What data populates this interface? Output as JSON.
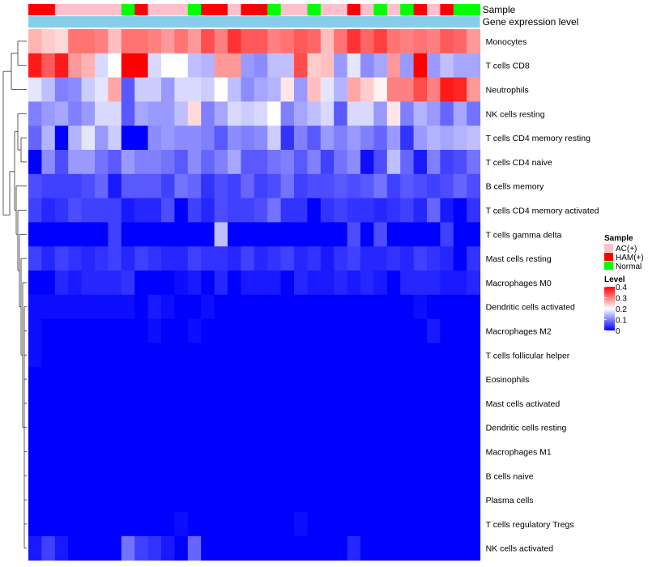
{
  "chart_data": {
    "type": "heatmap",
    "title": "",
    "annotation_rows": [
      "Sample",
      "Gene expression level"
    ],
    "rows": [
      "Monocytes",
      "T cells CD8",
      "Neutrophils",
      "NK cells resting",
      "T cells CD4 memory resting",
      "T cells CD4 naive",
      "B cells memory",
      "T cells CD4 memory activated",
      "T cells gamma delta",
      "Mast cells resting",
      "Macrophages M0",
      "Dendritic cells activated",
      "Macrophages M2",
      "T cells follicular helper",
      "Eosinophils",
      "Mast cells activated",
      "Dendritic cells resting",
      "Macrophages M1",
      "B cells naive",
      "Plasma cells",
      "T cells regulatory  Tregs",
      "NK cells activated"
    ],
    "column_groups": [
      "HAM(+)",
      "HAM(+)",
      "AC(+)",
      "AC(+)",
      "AC(+)",
      "AC(+)",
      "AC(+)",
      "Normal",
      "HAM(+)",
      "AC(+)",
      "AC(+)",
      "AC(+)",
      "Normal",
      "HAM(+)",
      "HAM(+)",
      "AC(+)",
      "HAM(+)",
      "HAM(+)",
      "Normal",
      "AC(+)",
      "AC(+)",
      "Normal",
      "AC(+)",
      "AC(+)",
      "HAM(+)",
      "AC(+)",
      "Normal",
      "AC(+)",
      "Normal",
      "HAM(+)",
      "AC(+)",
      "HAM(+)",
      "Normal",
      "Normal"
    ],
    "values": [
      [
        0.26,
        0.24,
        0.23,
        0.31,
        0.31,
        0.3,
        0.25,
        0.31,
        0.31,
        0.3,
        0.28,
        0.31,
        0.28,
        0.34,
        0.3,
        0.36,
        0.33,
        0.33,
        0.3,
        0.31,
        0.33,
        0.32,
        0.25,
        0.31,
        0.36,
        0.32,
        0.35,
        0.31,
        0.3,
        0.31,
        0.3,
        0.33,
        0.32,
        0.28
      ],
      [
        0.38,
        0.33,
        0.38,
        0.28,
        0.26,
        0.17,
        0.2,
        0.4,
        0.4,
        0.17,
        0.2,
        0.2,
        0.15,
        0.14,
        0.28,
        0.28,
        0.12,
        0.11,
        0.15,
        0.15,
        0.34,
        0.24,
        0.25,
        0.12,
        0.18,
        0.11,
        0.13,
        0.28,
        0.12,
        0.4,
        0.12,
        0.15,
        0.13,
        0.13
      ],
      [
        0.18,
        0.15,
        0.1,
        0.11,
        0.16,
        0.18,
        0.27,
        0.07,
        0.16,
        0.16,
        0.12,
        0.17,
        0.17,
        0.16,
        0.2,
        0.15,
        0.11,
        0.13,
        0.14,
        0.22,
        0.12,
        0.25,
        0.18,
        0.14,
        0.27,
        0.24,
        0.21,
        0.3,
        0.3,
        0.34,
        0.3,
        0.38,
        0.37,
        0.28
      ],
      [
        0.1,
        0.12,
        0.13,
        0.1,
        0.12,
        0.17,
        0.17,
        0.07,
        0.13,
        0.12,
        0.12,
        0.15,
        0.23,
        0.1,
        0.13,
        0.17,
        0.16,
        0.17,
        0.2,
        0.1,
        0.13,
        0.15,
        0.17,
        0.07,
        0.17,
        0.17,
        0.12,
        0.22,
        0.1,
        0.14,
        0.12,
        0.08,
        0.13,
        0.09
      ],
      [
        0.08,
        0.14,
        0.0,
        0.14,
        0.18,
        0.12,
        0.16,
        0.0,
        0.0,
        0.11,
        0.12,
        0.11,
        0.11,
        0.1,
        0.07,
        0.11,
        0.1,
        0.11,
        0.16,
        0.04,
        0.1,
        0.07,
        0.12,
        0.1,
        0.12,
        0.1,
        0.08,
        0.12,
        0.04,
        0.12,
        0.14,
        0.13,
        0.14,
        0.15
      ],
      [
        0.0,
        0.11,
        0.06,
        0.12,
        0.12,
        0.09,
        0.07,
        0.12,
        0.1,
        0.1,
        0.09,
        0.07,
        0.11,
        0.08,
        0.1,
        0.13,
        0.07,
        0.07,
        0.09,
        0.1,
        0.07,
        0.1,
        0.05,
        0.09,
        0.11,
        0.01,
        0.06,
        0.15,
        0.08,
        0.02,
        0.1,
        0.05,
        0.06,
        0.09
      ],
      [
        0.06,
        0.05,
        0.05,
        0.05,
        0.06,
        0.08,
        0.02,
        0.07,
        0.07,
        0.07,
        0.05,
        0.09,
        0.08,
        0.04,
        0.06,
        0.05,
        0.08,
        0.05,
        0.06,
        0.09,
        0.05,
        0.06,
        0.06,
        0.07,
        0.06,
        0.07,
        0.09,
        0.05,
        0.07,
        0.06,
        0.05,
        0.06,
        0.08,
        0.06
      ],
      [
        0.05,
        0.03,
        0.04,
        0.06,
        0.05,
        0.05,
        0.05,
        0.02,
        0.03,
        0.03,
        0.06,
        0.0,
        0.05,
        0.03,
        0.06,
        0.05,
        0.05,
        0.06,
        0.09,
        0.04,
        0.04,
        0.0,
        0.04,
        0.05,
        0.04,
        0.04,
        0.03,
        0.04,
        0.05,
        0.03,
        0.08,
        0.02,
        0.0,
        0.04
      ],
      [
        0.0,
        0.0,
        0.0,
        0.0,
        0.0,
        0.0,
        0.05,
        0.0,
        0.0,
        0.0,
        0.0,
        0.0,
        0.0,
        0.0,
        0.15,
        0.0,
        0.0,
        0.0,
        0.0,
        0.0,
        0.0,
        0.0,
        0.0,
        0.0,
        0.06,
        0.0,
        0.06,
        0.0,
        0.0,
        0.0,
        0.0,
        0.05,
        0.0,
        0.0
      ],
      [
        0.05,
        0.03,
        0.05,
        0.04,
        0.03,
        0.04,
        0.05,
        0.03,
        0.05,
        0.04,
        0.03,
        0.03,
        0.05,
        0.04,
        0.04,
        0.03,
        0.05,
        0.03,
        0.04,
        0.05,
        0.03,
        0.04,
        0.02,
        0.04,
        0.05,
        0.03,
        0.03,
        0.04,
        0.03,
        0.05,
        0.04,
        0.03,
        0.0,
        0.04
      ],
      [
        0.0,
        0.0,
        0.03,
        0.02,
        0.03,
        0.03,
        0.03,
        0.04,
        0.0,
        0.0,
        0.0,
        0.01,
        0.02,
        0.0,
        0.03,
        0.0,
        0.02,
        0.02,
        0.02,
        0.0,
        0.03,
        0.02,
        0.02,
        0.03,
        0.02,
        0.03,
        0.02,
        0.0,
        0.03,
        0.03,
        0.03,
        0.02,
        0.02,
        0.03
      ],
      [
        0.01,
        0.01,
        0.01,
        0.01,
        0.01,
        0.01,
        0.01,
        0.01,
        0.0,
        0.02,
        0.01,
        0.0,
        0.0,
        0.01,
        0.0,
        0.0,
        0.0,
        0.0,
        0.0,
        0.0,
        0.0,
        0.0,
        0.0,
        0.0,
        0.0,
        0.0,
        0.0,
        0.0,
        0.0,
        0.01,
        0.0,
        0.0,
        0.0,
        0.0
      ],
      [
        0.01,
        0.0,
        0.0,
        0.0,
        0.0,
        0.0,
        0.0,
        0.0,
        0.0,
        0.01,
        0.0,
        0.0,
        0.01,
        0.0,
        0.0,
        0.0,
        0.0,
        0.0,
        0.0,
        0.0,
        0.0,
        0.0,
        0.0,
        0.0,
        0.0,
        0.0,
        0.0,
        0.0,
        0.0,
        0.0,
        0.02,
        0.0,
        0.0,
        0.0
      ],
      [
        0.01,
        0.0,
        0.0,
        0.0,
        0.0,
        0.0,
        0.0,
        0.0,
        0.0,
        0.0,
        0.0,
        0.0,
        0.0,
        0.0,
        0.0,
        0.0,
        0.0,
        0.0,
        0.0,
        0.0,
        0.0,
        0.0,
        0.0,
        0.0,
        0.0,
        0.0,
        0.0,
        0.0,
        0.0,
        0.0,
        0.0,
        0.0,
        0.0,
        0.0
      ],
      [
        0.0,
        0.0,
        0.0,
        0.0,
        0.0,
        0.0,
        0.0,
        0.0,
        0.0,
        0.0,
        0.0,
        0.0,
        0.0,
        0.0,
        0.0,
        0.0,
        0.0,
        0.0,
        0.0,
        0.0,
        0.0,
        0.0,
        0.0,
        0.0,
        0.0,
        0.0,
        0.0,
        0.0,
        0.0,
        0.0,
        0.0,
        0.0,
        0.0,
        0.0
      ],
      [
        0.0,
        0.0,
        0.0,
        0.0,
        0.0,
        0.0,
        0.0,
        0.0,
        0.0,
        0.0,
        0.0,
        0.0,
        0.0,
        0.0,
        0.0,
        0.0,
        0.0,
        0.0,
        0.0,
        0.0,
        0.0,
        0.0,
        0.0,
        0.0,
        0.0,
        0.0,
        0.0,
        0.0,
        0.0,
        0.0,
        0.0,
        0.0,
        0.0,
        0.0
      ],
      [
        0.0,
        0.0,
        0.0,
        0.0,
        0.0,
        0.0,
        0.0,
        0.0,
        0.0,
        0.0,
        0.0,
        0.0,
        0.0,
        0.0,
        0.0,
        0.0,
        0.0,
        0.0,
        0.0,
        0.0,
        0.0,
        0.0,
        0.0,
        0.0,
        0.0,
        0.0,
        0.0,
        0.0,
        0.0,
        0.0,
        0.0,
        0.0,
        0.0,
        0.0
      ],
      [
        0.0,
        0.0,
        0.0,
        0.0,
        0.0,
        0.0,
        0.0,
        0.0,
        0.0,
        0.0,
        0.0,
        0.0,
        0.0,
        0.0,
        0.0,
        0.0,
        0.0,
        0.0,
        0.0,
        0.0,
        0.0,
        0.0,
        0.0,
        0.0,
        0.0,
        0.0,
        0.0,
        0.0,
        0.0,
        0.0,
        0.0,
        0.0,
        0.0,
        0.0
      ],
      [
        0.0,
        0.0,
        0.0,
        0.0,
        0.0,
        0.0,
        0.0,
        0.0,
        0.0,
        0.0,
        0.0,
        0.0,
        0.0,
        0.0,
        0.0,
        0.0,
        0.0,
        0.0,
        0.0,
        0.0,
        0.0,
        0.0,
        0.0,
        0.0,
        0.0,
        0.0,
        0.0,
        0.0,
        0.0,
        0.0,
        0.0,
        0.0,
        0.0,
        0.0
      ],
      [
        0.0,
        0.0,
        0.0,
        0.0,
        0.0,
        0.0,
        0.0,
        0.0,
        0.0,
        0.0,
        0.0,
        0.0,
        0.0,
        0.0,
        0.0,
        0.0,
        0.0,
        0.0,
        0.0,
        0.0,
        0.0,
        0.0,
        0.0,
        0.0,
        0.0,
        0.0,
        0.0,
        0.0,
        0.0,
        0.0,
        0.0,
        0.0,
        0.0,
        0.0
      ],
      [
        0.0,
        0.0,
        0.0,
        0.0,
        0.0,
        0.0,
        0.0,
        0.0,
        0.0,
        0.0,
        0.0,
        0.01,
        0.0,
        0.0,
        0.0,
        0.0,
        0.0,
        0.0,
        0.0,
        0.0,
        0.01,
        0.0,
        0.0,
        0.0,
        0.0,
        0.0,
        0.0,
        0.0,
        0.0,
        0.0,
        0.0,
        0.0,
        0.0,
        0.0
      ],
      [
        0.02,
        0.05,
        0.02,
        0.0,
        0.0,
        0.0,
        0.0,
        0.09,
        0.05,
        0.04,
        0.02,
        0.0,
        0.08,
        0.0,
        0.0,
        0.0,
        0.0,
        0.0,
        0.0,
        0.0,
        0.0,
        0.0,
        0.0,
        0.0,
        0.03,
        0.0,
        0.0,
        0.0,
        0.0,
        0.0,
        0.0,
        0.0,
        0.0,
        0.0
      ]
    ],
    "color_scale": {
      "min": 0,
      "mid": 0.2,
      "max": 0.4,
      "low_color": "#0000ff",
      "mid_color": "#ffffff",
      "high_color": "#ff0000"
    },
    "gene_expression_bar_color": "#87ceeb",
    "legend": {
      "sample_title": "Sample",
      "sample_entries": [
        {
          "label": "AC(+)",
          "color": "#ffc0cb"
        },
        {
          "label": "HAM(+)",
          "color": "#ff0000"
        },
        {
          "label": "Normal",
          "color": "#00ff00"
        }
      ],
      "level_title": "Level",
      "level_ticks": [
        "0.4",
        "0.3",
        "0.2",
        "0.1",
        "0"
      ],
      "level_tick_values": [
        0.4,
        0.3,
        0.2,
        0.1,
        0
      ]
    }
  }
}
